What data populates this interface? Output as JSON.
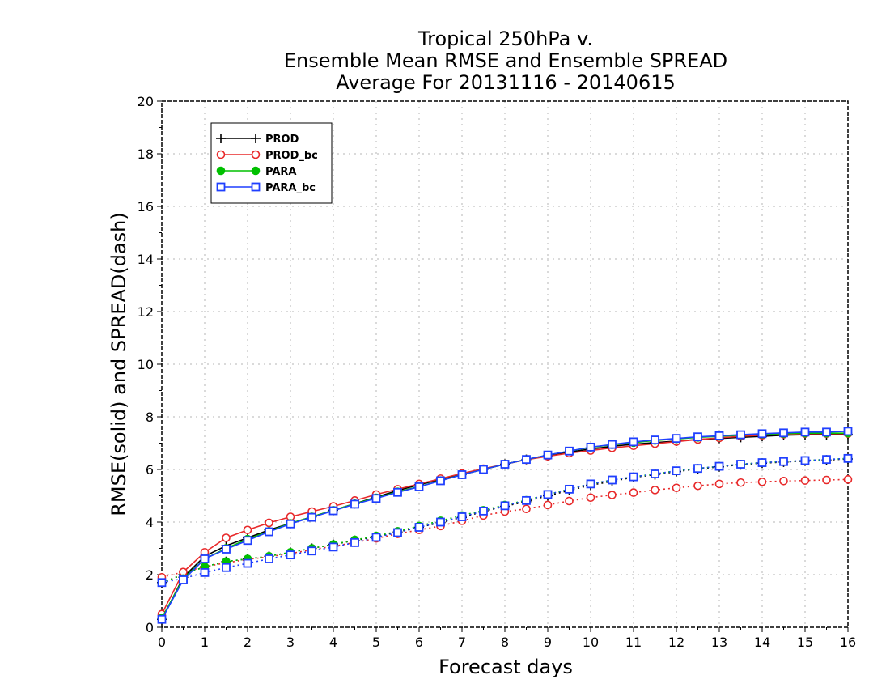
{
  "chart_data": {
    "type": "line",
    "title": [
      "Tropical 250hPa v.",
      "Ensemble Mean RMSE and Ensemble SPREAD",
      "Average For 20131116 - 20140615"
    ],
    "xlabel": "Forecast days",
    "ylabel": "RMSE(solid) and SPREAD(dash)",
    "xlim": [
      0,
      16
    ],
    "ylim": [
      0,
      20
    ],
    "xticks": [
      0,
      1,
      2,
      3,
      4,
      5,
      6,
      7,
      8,
      9,
      10,
      11,
      12,
      13,
      14,
      15,
      16
    ],
    "yticks": [
      0,
      2,
      4,
      6,
      8,
      10,
      12,
      14,
      16,
      18,
      20
    ],
    "grid": true,
    "legend_position": "top-left",
    "x": [
      0,
      0.5,
      1,
      1.5,
      2,
      2.5,
      3,
      3.5,
      4,
      4.5,
      5,
      5.5,
      6,
      6.5,
      7,
      7.5,
      8,
      8.5,
      9,
      9.5,
      10,
      10.5,
      11,
      11.5,
      12,
      12.5,
      13,
      13.5,
      14,
      14.5,
      15,
      15.5,
      16
    ],
    "series": [
      {
        "name": "PROD",
        "metric": "RMSE",
        "color": "#000000",
        "marker": "plus",
        "line": "solid",
        "values": [
          0.3,
          1.9,
          2.7,
          3.1,
          3.4,
          3.7,
          3.95,
          4.2,
          4.45,
          4.7,
          4.95,
          5.2,
          5.42,
          5.62,
          5.82,
          6.0,
          6.2,
          6.38,
          6.52,
          6.66,
          6.78,
          6.88,
          6.96,
          7.02,
          7.08,
          7.14,
          7.18,
          7.22,
          7.26,
          7.3,
          7.32,
          7.32,
          7.32
        ]
      },
      {
        "name": "PROD_bc",
        "metric": "RMSE",
        "color": "#e8292a",
        "marker": "circle",
        "line": "solid",
        "values": [
          0.5,
          2.1,
          2.85,
          3.4,
          3.7,
          3.97,
          4.2,
          4.4,
          4.6,
          4.82,
          5.05,
          5.25,
          5.45,
          5.65,
          5.85,
          6.03,
          6.2,
          6.37,
          6.5,
          6.62,
          6.72,
          6.82,
          6.9,
          6.98,
          7.06,
          7.14,
          7.2,
          7.26,
          7.3,
          7.34,
          7.36,
          7.36,
          7.36
        ]
      },
      {
        "name": "PARA",
        "metric": "RMSE",
        "color": "#00c000",
        "marker": "dot",
        "line": "solid",
        "values": [
          0.35,
          1.85,
          2.6,
          3.0,
          3.35,
          3.65,
          3.95,
          4.2,
          4.45,
          4.7,
          4.92,
          5.15,
          5.35,
          5.58,
          5.8,
          6.0,
          6.2,
          6.38,
          6.55,
          6.7,
          6.84,
          6.94,
          7.02,
          7.1,
          7.16,
          7.22,
          7.26,
          7.3,
          7.34,
          7.36,
          7.38,
          7.38,
          7.38
        ]
      },
      {
        "name": "PARA_bc",
        "metric": "RMSE",
        "color": "#1f3fff",
        "marker": "square",
        "line": "solid",
        "values": [
          0.3,
          1.8,
          2.6,
          2.97,
          3.3,
          3.63,
          3.93,
          4.18,
          4.43,
          4.68,
          4.9,
          5.13,
          5.34,
          5.57,
          5.8,
          6.0,
          6.2,
          6.38,
          6.55,
          6.7,
          6.85,
          6.95,
          7.05,
          7.12,
          7.18,
          7.24,
          7.28,
          7.32,
          7.36,
          7.39,
          7.42,
          7.42,
          7.45
        ]
      },
      {
        "name": "PROD",
        "metric": "SPREAD",
        "color": "#000000",
        "marker": "plus",
        "line": "dotted",
        "values": [
          1.7,
          2.0,
          2.3,
          2.5,
          2.6,
          2.7,
          2.85,
          3.0,
          3.15,
          3.3,
          3.45,
          3.62,
          3.8,
          3.98,
          4.18,
          4.4,
          4.6,
          4.78,
          5.0,
          5.2,
          5.4,
          5.55,
          5.7,
          5.8,
          5.92,
          6.02,
          6.1,
          6.18,
          6.24,
          6.28,
          6.32,
          6.36,
          6.4
        ]
      },
      {
        "name": "PROD_bc",
        "metric": "SPREAD",
        "color": "#e8292a",
        "marker": "circle",
        "line": "dotted",
        "values": [
          1.9,
          2.1,
          2.3,
          2.45,
          2.58,
          2.68,
          2.8,
          2.95,
          3.08,
          3.22,
          3.38,
          3.55,
          3.7,
          3.85,
          4.05,
          4.25,
          4.4,
          4.5,
          4.65,
          4.8,
          4.93,
          5.03,
          5.12,
          5.22,
          5.3,
          5.38,
          5.45,
          5.5,
          5.53,
          5.56,
          5.58,
          5.6,
          5.62
        ]
      },
      {
        "name": "PARA",
        "metric": "SPREAD",
        "color": "#00c000",
        "marker": "dot",
        "line": "dotted",
        "values": [
          1.7,
          2.0,
          2.3,
          2.5,
          2.6,
          2.7,
          2.85,
          3.0,
          3.15,
          3.32,
          3.47,
          3.65,
          3.85,
          4.05,
          4.25,
          4.45,
          4.65,
          4.83,
          5.05,
          5.25,
          5.45,
          5.6,
          5.72,
          5.83,
          5.95,
          6.04,
          6.12,
          6.2,
          6.26,
          6.3,
          6.34,
          6.38,
          6.42
        ]
      },
      {
        "name": "PARA_bc",
        "metric": "SPREAD",
        "color": "#1f3fff",
        "marker": "square",
        "line": "dotted",
        "values": [
          1.7,
          1.85,
          2.08,
          2.27,
          2.43,
          2.6,
          2.75,
          2.9,
          3.05,
          3.22,
          3.42,
          3.6,
          3.8,
          4.0,
          4.2,
          4.42,
          4.62,
          4.82,
          5.05,
          5.25,
          5.45,
          5.6,
          5.72,
          5.83,
          5.95,
          6.04,
          6.12,
          6.2,
          6.26,
          6.3,
          6.34,
          6.38,
          6.42
        ]
      }
    ]
  }
}
